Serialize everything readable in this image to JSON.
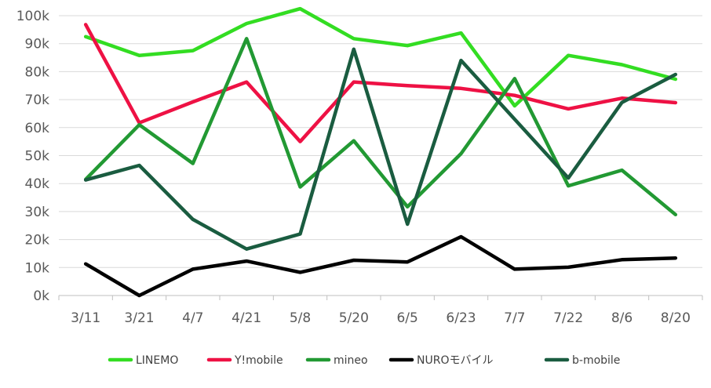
{
  "chart_data": {
    "type": "line",
    "title": "",
    "xlabel": "",
    "ylabel": "",
    "categories": [
      "3/11",
      "3/21",
      "4/7",
      "4/21",
      "5/8",
      "5/20",
      "6/5",
      "6/23",
      "7/7",
      "7/22",
      "8/6",
      "8/20"
    ],
    "ylim": [
      0,
      100000
    ],
    "yticks": [
      0,
      10000,
      20000,
      30000,
      40000,
      50000,
      60000,
      70000,
      80000,
      90000,
      100000
    ],
    "ytick_labels": [
      "0k",
      "10k",
      "20k",
      "30k",
      "40k",
      "50k",
      "60k",
      "70k",
      "80k",
      "90k",
      "100k"
    ],
    "grid": true,
    "legend_position": "bottom",
    "series": [
      {
        "name": "LINEMO",
        "color": "#33dd22",
        "values": [
          92500,
          85800,
          87500,
          97200,
          102500,
          91800,
          89300,
          93800,
          67800,
          85800,
          82500,
          77300
        ]
      },
      {
        "name": "Y!mobile",
        "color": "#ee1144",
        "values": [
          96800,
          61700,
          69200,
          76300,
          55000,
          76300,
          75000,
          74000,
          71500,
          66700,
          70500,
          68900
        ]
      },
      {
        "name": "mineo",
        "color": "#229933",
        "values": [
          41500,
          61000,
          47200,
          91800,
          38800,
          55300,
          31700,
          50700,
          77500,
          39200,
          44800,
          28900
        ]
      },
      {
        "name": "NUROモバイル",
        "color": "#000000",
        "values": [
          11300,
          0,
          9400,
          12300,
          8300,
          12600,
          12000,
          21000,
          9400,
          10100,
          12800,
          13400
        ]
      },
      {
        "name": "b-mobile",
        "color": "#1a5c40",
        "values": [
          41300,
          46500,
          27200,
          16600,
          22000,
          88000,
          25500,
          84000,
          63000,
          42000,
          69000,
          79000
        ]
      }
    ]
  }
}
